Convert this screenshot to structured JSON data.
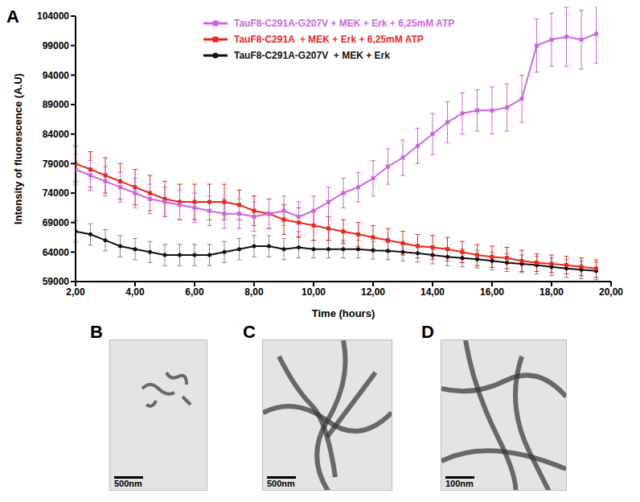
{
  "chart_data": {
    "type": "line",
    "panel_label": "A",
    "x_label": "Time (hours)",
    "y_label": "Intensity of fluorescence (A.U)",
    "legend": "top",
    "grid": false,
    "xlim": [
      2,
      20
    ],
    "xticks": [
      {
        "value": 2,
        "label": "2,00"
      },
      {
        "value": 4,
        "label": "4,00"
      },
      {
        "value": 6,
        "label": "6,00"
      },
      {
        "value": 8,
        "label": "8,00"
      },
      {
        "value": 10,
        "label": "10,00"
      },
      {
        "value": 12,
        "label": "12,00"
      },
      {
        "value": 14,
        "label": "14,00"
      },
      {
        "value": 16,
        "label": "16,00"
      },
      {
        "value": 18,
        "label": "18,00"
      },
      {
        "value": 20,
        "label": "20,00"
      }
    ],
    "ylim": [
      59000,
      104000
    ],
    "yticks": [
      59000,
      64000,
      69000,
      74000,
      79000,
      84000,
      89000,
      94000,
      99000,
      104000
    ],
    "x": [
      2,
      2.5,
      3,
      3.5,
      4,
      4.5,
      5,
      5.5,
      6,
      6.5,
      7,
      7.5,
      8,
      8.5,
      9,
      9.5,
      10,
      10.5,
      11,
      11.5,
      12,
      12.5,
      13,
      13.5,
      14,
      14.5,
      15,
      15.5,
      16,
      16.5,
      17,
      17.5,
      18,
      18.5,
      19,
      19.5
    ],
    "series": [
      {
        "name": "TauF8-C291A-G207V + MEK + Erk + 6,25mM ATP",
        "color": "#cc66dd",
        "marker": "square",
        "line_style": "solid",
        "values": [
          78000,
          77000,
          76000,
          75000,
          74000,
          73000,
          72500,
          72000,
          71500,
          71000,
          70500,
          70500,
          70000,
          70500,
          71000,
          70000,
          71000,
          72500,
          74000,
          75000,
          76500,
          78500,
          80000,
          82000,
          84000,
          86000,
          87500,
          88000,
          88000,
          88500,
          90000,
          99000,
          100000,
          100500,
          100000,
          101000
        ],
        "errors": [
          2500,
          2500,
          2500,
          2500,
          2500,
          2500,
          2500,
          2500,
          2500,
          2500,
          2500,
          2500,
          2500,
          2500,
          2500,
          2500,
          2500,
          2500,
          2500,
          2500,
          3000,
          3000,
          3000,
          3000,
          3500,
          3500,
          3500,
          3500,
          4000,
          4000,
          4000,
          4500,
          4500,
          5000,
          5000,
          5000
        ]
      },
      {
        "name": "TauF8-C291A  + MEK + Erk + 6,25mM ATP",
        "color": "#e8281c",
        "marker": "square",
        "line_style": "solid",
        "values": [
          79000,
          78000,
          77000,
          76000,
          75000,
          74000,
          73000,
          72500,
          72500,
          72500,
          72500,
          72000,
          71000,
          70500,
          69500,
          69000,
          68500,
          68000,
          67500,
          67000,
          66500,
          66000,
          65500,
          65000,
          64800,
          64500,
          64000,
          63500,
          63200,
          63000,
          62500,
          62200,
          62000,
          61800,
          61500,
          61200
        ],
        "errors": [
          3000,
          3000,
          3000,
          3000,
          3000,
          3000,
          3000,
          3000,
          3000,
          3000,
          3000,
          2500,
          2500,
          2500,
          2500,
          2500,
          2500,
          2000,
          2000,
          2000,
          2000,
          2000,
          2000,
          2000,
          2000,
          2000,
          1800,
          1800,
          1800,
          1800,
          1800,
          1500,
          1500,
          1500,
          1500,
          1500
        ]
      },
      {
        "name": "TauF8-C291A-G207V  + MEK + Erk",
        "color": "#111111",
        "marker": "circle",
        "line_style": "solid",
        "values": [
          67500,
          67000,
          66000,
          65000,
          64500,
          64000,
          63500,
          63500,
          63500,
          63500,
          64000,
          64500,
          65000,
          65000,
          64500,
          64800,
          64500,
          64500,
          64500,
          64500,
          64300,
          64200,
          64000,
          63800,
          63500,
          63200,
          63000,
          62800,
          62500,
          62200,
          62000,
          61800,
          61500,
          61200,
          61000,
          60800
        ],
        "errors": [
          1800,
          1800,
          1800,
          1800,
          1800,
          1800,
          1800,
          1800,
          1800,
          1800,
          1800,
          1800,
          1800,
          1800,
          1800,
          1800,
          1500,
          1500,
          1500,
          1500,
          1500,
          1500,
          1500,
          1500,
          1500,
          1500,
          1500,
          1500,
          1500,
          1500,
          1500,
          1500,
          1500,
          1500,
          1500,
          1500
        ]
      }
    ]
  },
  "micrographs": [
    {
      "panel_label": "B",
      "scale_bar": "500nm"
    },
    {
      "panel_label": "C",
      "scale_bar": "500nm"
    },
    {
      "panel_label": "D",
      "scale_bar": "100nm"
    }
  ]
}
